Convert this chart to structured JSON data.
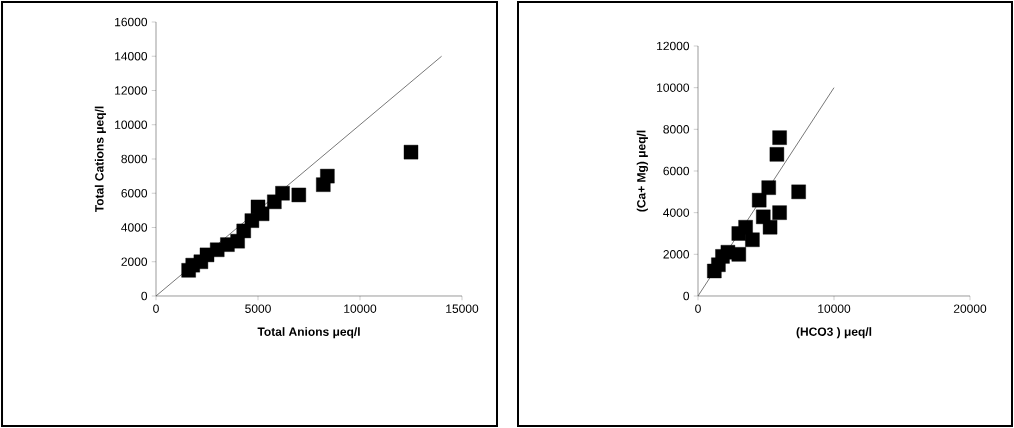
{
  "chart_data": [
    {
      "type": "scatter",
      "xlabel": "Total Anions μeq/l",
      "ylabel": "Total Cations μeq/l",
      "xlim": [
        0,
        15000
      ],
      "ylim": [
        0,
        16000
      ],
      "xticks": [
        0,
        5000,
        10000,
        15000
      ],
      "yticks": [
        0,
        2000,
        4000,
        6000,
        8000,
        10000,
        12000,
        14000,
        16000
      ],
      "grid": false,
      "series": [
        {
          "type": "scatter",
          "marker": "square",
          "color": "#000000",
          "x": [
            1600,
            1800,
            2200,
            2500,
            3000,
            3500,
            4000,
            4300,
            4700,
            5000,
            5200,
            5800,
            6200,
            7000,
            8200,
            8400,
            12500
          ],
          "values": [
            1500,
            1800,
            2000,
            2400,
            2700,
            3000,
            3200,
            3800,
            4400,
            5200,
            4800,
            5500,
            6000,
            5900,
            6500,
            7000,
            8400
          ]
        },
        {
          "type": "line",
          "color": "#555555",
          "x": [
            0,
            14000
          ],
          "values": [
            0,
            14000
          ]
        }
      ]
    },
    {
      "type": "scatter",
      "xlabel": "(HCO3 ) μeq/l",
      "ylabel": "(Ca+ Mg) μeq/l",
      "xlim": [
        0,
        20000
      ],
      "ylim": [
        0,
        12000
      ],
      "xticks": [
        0,
        10000,
        20000
      ],
      "yticks": [
        0,
        2000,
        4000,
        6000,
        8000,
        10000,
        12000
      ],
      "grid": false,
      "series": [
        {
          "type": "scatter",
          "marker": "square",
          "color": "#000000",
          "x": [
            1200,
            1500,
            1800,
            2200,
            3000,
            3000,
            3500,
            4000,
            4500,
            4800,
            5200,
            5300,
            5800,
            6000,
            6000,
            7400
          ],
          "values": [
            1200,
            1500,
            1900,
            2100,
            3000,
            2000,
            3300,
            2700,
            4600,
            3800,
            5200,
            3300,
            6800,
            7600,
            4000,
            5000
          ]
        },
        {
          "type": "line",
          "color": "#555555",
          "x": [
            0,
            10000
          ],
          "values": [
            0,
            10000
          ]
        }
      ]
    }
  ]
}
